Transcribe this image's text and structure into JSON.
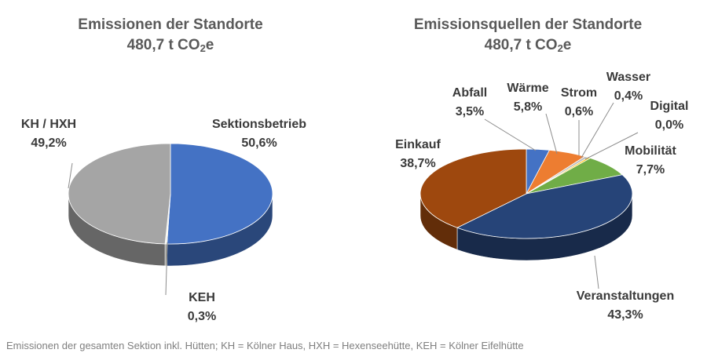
{
  "chart_data": [
    {
      "type": "pie",
      "title": "Emissionen der Standorte",
      "subtitle": "480,7 t CO",
      "subtitle_sub": "2",
      "subtitle_end": "e",
      "slices": [
        {
          "name": "Sektionsbetrieb",
          "value": 50.6,
          "label": "50,6%",
          "color": "#4472C4"
        },
        {
          "name": "KEH",
          "value": 0.3,
          "label": "0,3%",
          "color": "#F2F2E6"
        },
        {
          "name": "KH / HXH",
          "value": 49.2,
          "label": "49,2%",
          "color": "#A5A5A5"
        }
      ]
    },
    {
      "type": "pie",
      "title": "Emissionsquellen der Standorte",
      "subtitle": "480,7 t CO",
      "subtitle_sub": "2",
      "subtitle_end": "e",
      "slices": [
        {
          "name": "Abfall",
          "value": 3.5,
          "label": "3,5%",
          "color": "#4472C4"
        },
        {
          "name": "Wärme",
          "value": 5.8,
          "label": "5,8%",
          "color": "#ED7D31"
        },
        {
          "name": "Strom",
          "value": 0.6,
          "label": "0,6%",
          "color": "#BFBFBF"
        },
        {
          "name": "Wasser",
          "value": 0.4,
          "label": "0,4%",
          "color": "#FFC000"
        },
        {
          "name": "Digital",
          "value": 0.0,
          "label": "0,0%",
          "color": "#5B9BD5"
        },
        {
          "name": "Mobilität",
          "value": 7.7,
          "label": "7,7%",
          "color": "#70AD47"
        },
        {
          "name": "Veranstaltungen",
          "value": 43.3,
          "label": "43,3%",
          "color": "#264478"
        },
        {
          "name": "Einkauf",
          "value": 38.7,
          "label": "38,7%",
          "color": "#9E480E"
        }
      ]
    }
  ],
  "footnote": "Emissionen der gesamten Sektion inkl. Hütten; KH = Kölner Haus, HXH = Hexenseehütte, KEH = Kölner Eifelhütte"
}
